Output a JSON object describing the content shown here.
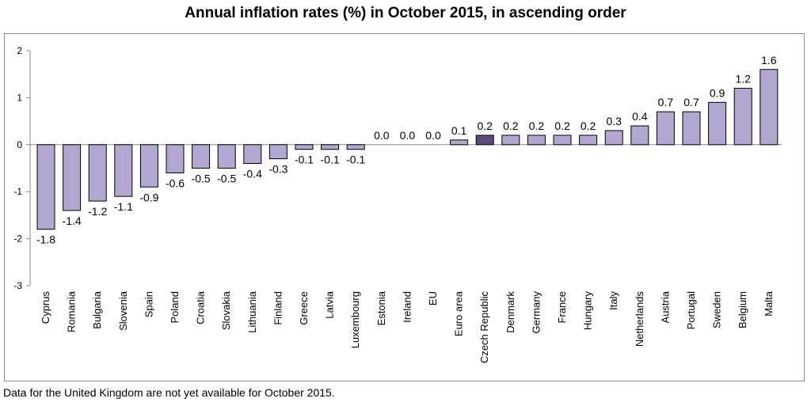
{
  "chart_data": {
    "type": "bar",
    "title": "Annual inflation rates (%) in October 2015, in ascending order",
    "xlabel": "",
    "ylabel": "",
    "ylim": [
      -3,
      2
    ],
    "yticks": [
      2,
      1,
      0,
      -1,
      -2,
      -3
    ],
    "categories": [
      "Cyprus",
      "Romania",
      "Bulgaria",
      "Slovenia",
      "Spain",
      "Poland",
      "Croatia",
      "Slovakia",
      "Lithuania",
      "Finland",
      "Greece",
      "Latvia",
      "Luxembourg",
      "Estonia",
      "Ireland",
      "EU",
      "Euro area",
      "Czech Republic",
      "Denmark",
      "Germany",
      "France",
      "Hungary",
      "Italy",
      "Netherlands",
      "Austria",
      "Portugal",
      "Sweden",
      "Belgium",
      "Malta"
    ],
    "values": [
      -1.8,
      -1.4,
      -1.2,
      -1.1,
      -0.9,
      -0.6,
      -0.5,
      -0.5,
      -0.4,
      -0.3,
      -0.1,
      -0.1,
      -0.1,
      0.0,
      0.0,
      0.0,
      0.1,
      0.2,
      0.2,
      0.2,
      0.2,
      0.2,
      0.3,
      0.4,
      0.7,
      0.7,
      0.9,
      1.2,
      1.6
    ],
    "value_labels": [
      "-1.8",
      "-1.4",
      "-1.2",
      "-1.1",
      "-0.9",
      "-0.6",
      "-0.5",
      "-0.5",
      "-0.4",
      "-0.3",
      "-0.1",
      "-0.1",
      "-0.1",
      "0.0",
      "0.0",
      "0.0",
      "0.1",
      "0.2",
      "0.2",
      "0.2",
      "0.2",
      "0.2",
      "0.3",
      "0.4",
      "0.7",
      "0.7",
      "0.9",
      "1.2",
      "1.6"
    ],
    "highlight_category": "Czech Republic",
    "colors": {
      "bar": "#b3a6d0",
      "highlight": "#5f4a7d",
      "outline": "#000000",
      "axis": "#888888"
    },
    "grid": false,
    "legend": "none"
  },
  "footnote": "Data for the United Kingdom are not yet available for October 2015."
}
